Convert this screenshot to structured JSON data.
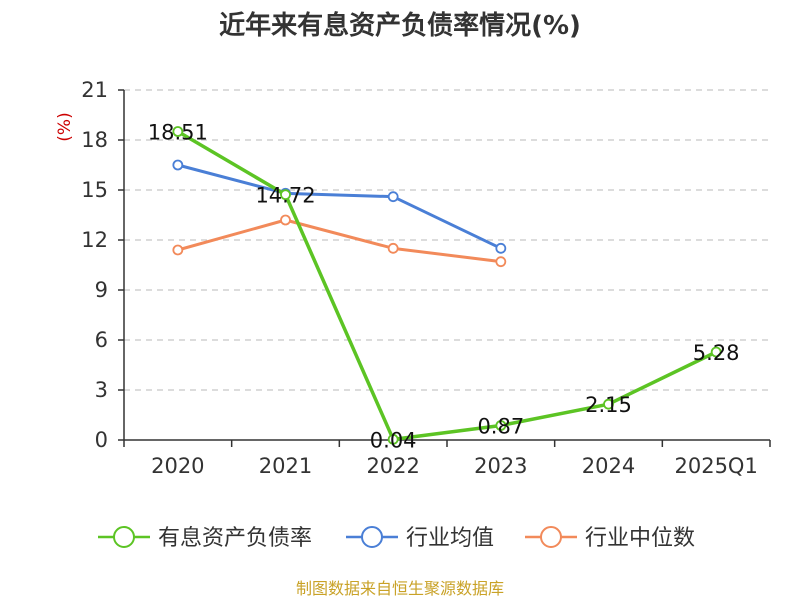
{
  "chart_data": {
    "type": "line",
    "title": "近年来有息资产负债率情况(%)",
    "ylabel": "(%)",
    "xlabel": "",
    "categories": [
      "2020",
      "2021",
      "2022",
      "2023",
      "2024",
      "2025Q1"
    ],
    "yticks": [
      0,
      3,
      6,
      9,
      12,
      15,
      18,
      21
    ],
    "ylim": [
      0,
      21
    ],
    "grid": "horizontal-dashed",
    "legend_position": "bottom",
    "series": [
      {
        "name": "有息资产负债率",
        "color": "#5cc424",
        "values": [
          18.51,
          14.72,
          0.04,
          0.87,
          2.15,
          5.28
        ],
        "labels": [
          "18.51",
          "14.72",
          "0.04",
          "0.87",
          "2.15",
          "5.28"
        ]
      },
      {
        "name": "行业均值",
        "color": "#4a7fd6",
        "values": [
          16.5,
          14.8,
          14.6,
          11.5,
          null,
          null
        ]
      },
      {
        "name": "行业中位数",
        "color": "#f28a5a",
        "values": [
          11.4,
          13.2,
          11.5,
          10.7,
          null,
          null
        ]
      }
    ]
  },
  "footer": {
    "source": "制图数据来自恒生聚源数据库"
  }
}
